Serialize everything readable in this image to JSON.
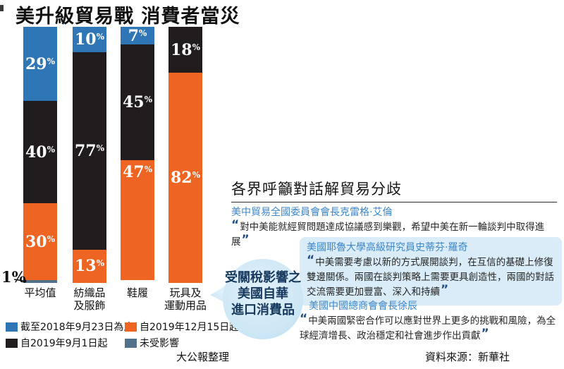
{
  "chart_data": {
    "type": "bar",
    "stacked": true,
    "orientation": "vertical",
    "title": "美升級貿易戰 消費者當災",
    "unit": "%",
    "ylim": [
      0,
      100
    ],
    "grid": false,
    "categories": [
      "平均值",
      "紡織品及服飾",
      "鞋履",
      "玩具及運動用品"
    ],
    "category_lines": [
      [
        "平均值"
      ],
      [
        "紡織品",
        "及服飾"
      ],
      [
        "鞋履"
      ],
      [
        "玩具及",
        "運動用品"
      ]
    ],
    "series": [
      {
        "name": "截至2018年9月23日為止",
        "color": "#2e76b6",
        "values": [
          29,
          10,
          7,
          0
        ]
      },
      {
        "name": "自2019年9月1日起",
        "color": "#211d1e",
        "values": [
          40,
          77,
          45,
          18
        ]
      },
      {
        "name": "自2019年12月15日起",
        "color": "#ee6423",
        "values": [
          30,
          13,
          47,
          82
        ]
      },
      {
        "name": "未受影響",
        "color": "#52718a",
        "values": [
          1,
          0,
          0,
          0
        ]
      }
    ],
    "top_aligned_labels": [
      [
        2,
        2
      ]
    ],
    "external_label": {
      "text": "1%",
      "target_series": "未受影響",
      "target_category": "平均值"
    }
  },
  "legend": {
    "items": [
      {
        "label": "截至2018年9月23日為止",
        "color": "#2e76b6"
      },
      {
        "label": "自2019年12月15日起",
        "color": "#ee6423"
      },
      {
        "label": "自2019年9月1日起",
        "color": "#211d1e"
      },
      {
        "label": "未受影響",
        "color": "#52718a"
      }
    ]
  },
  "callout": {
    "lines": [
      "受關稅影響之",
      "美國自華",
      "進口消費品"
    ],
    "fill_color": "#cde7f5",
    "text_color": "#16395d"
  },
  "quotes": {
    "header": "各界呼籲對話解貿易分歧",
    "open_mark": "“",
    "close_mark": "”",
    "items": [
      {
        "speaker": "美中貿易全國委員會會長克雷格·艾倫",
        "quote": "對中美能就經貿問題達成協議感到樂觀，希望中美在新一輪談判中取得進展",
        "highlighted": false
      },
      {
        "speaker": "美國耶魯大學高級研究員史蒂芬·羅奇",
        "quote": "中美需要考慮以新的方式展開談判，在互信的基礎上修復雙邊關係。兩國在談判策略上需要更具創造性，兩國的對話交流需要更加豐富、深入和持續",
        "highlighted": true
      },
      {
        "speaker": "美國中國總商會會長徐辰",
        "quote": "中美兩國緊密合作可以應對世界上更多的挑戰和風險，為全球經濟增長、政治穩定和社會進步作出貢獻",
        "highlighted": false
      }
    ]
  },
  "footer": {
    "compiled_by": "大公報整理",
    "source": "資料來源：新華社"
  }
}
